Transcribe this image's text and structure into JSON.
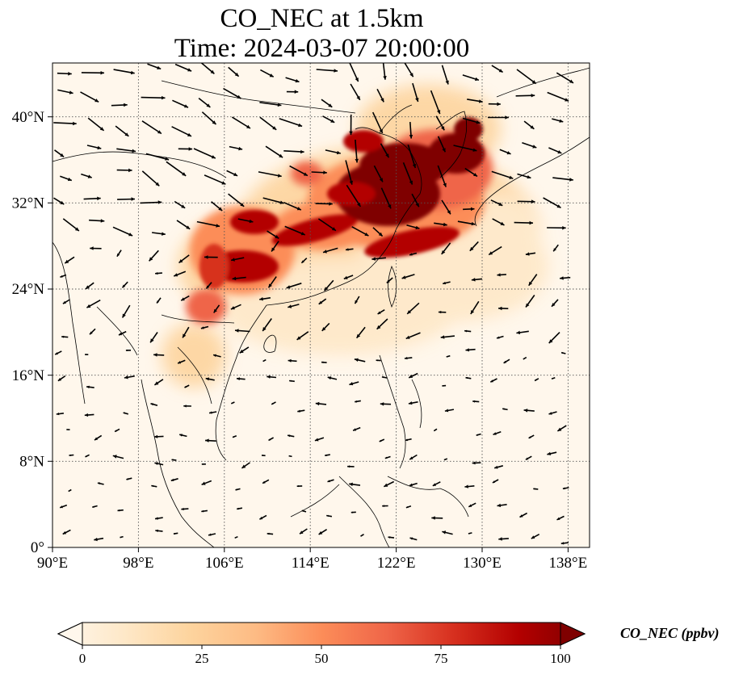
{
  "figure": {
    "title_line1": "CO_NEC at 1.5km",
    "title_line2": "Time: 2024-03-07 20:00:00"
  },
  "map": {
    "lon_range": [
      90,
      140
    ],
    "lat_range": [
      0,
      45
    ],
    "lon_ticks": [
      "90°E",
      "98°E",
      "106°E",
      "114°E",
      "122°E",
      "130°E",
      "138°E"
    ],
    "lat_ticks": [
      "0°",
      "8°N",
      "16°N",
      "24°N",
      "32°N",
      "40°N"
    ],
    "gridlines": true
  },
  "colorbar": {
    "label": "CO_NEC (ppbv)",
    "ticks": [
      "0",
      "25",
      "50",
      "75",
      "100"
    ],
    "range": [
      0,
      100
    ],
    "extend": "both",
    "colormap_stops": [
      "#fff7ec",
      "#fee8c8",
      "#fdd49e",
      "#fdbb84",
      "#fc8d59",
      "#ef6548",
      "#d7301f",
      "#b30000",
      "#7f0000"
    ]
  }
}
